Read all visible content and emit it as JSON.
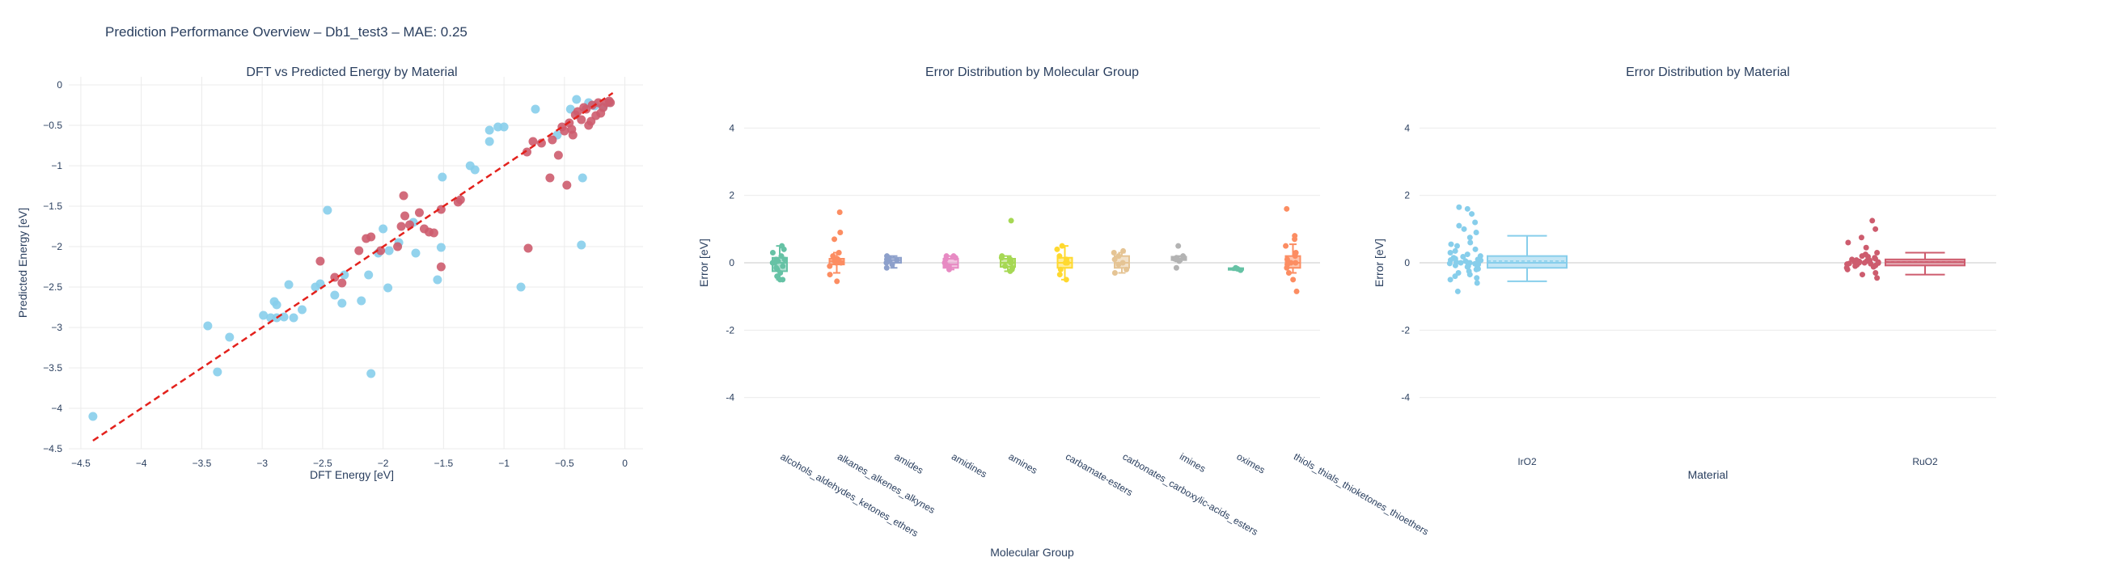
{
  "figure": {
    "title": "Prediction Performance Overview – Db1_test3 – MAE: 0.25"
  },
  "colors": {
    "IrO2": "#87CEEB",
    "RuO2": "#CD5C6E",
    "parity_line": "#E3211C",
    "grid": "#EBEBEB",
    "text": "#2a3f5f"
  },
  "chart_data": [
    {
      "type": "scatter",
      "title": "DFT vs Predicted Energy by Material",
      "xlabel": "DFT Energy [eV]",
      "ylabel": "Predicted Energy [eV]",
      "xlim": [
        -4.6,
        0.15
      ],
      "ylim": [
        -4.5,
        0.1
      ],
      "xticks": [
        -4.5,
        -4,
        -3.5,
        -3,
        -2.5,
        -2,
        -1.5,
        -1,
        -0.5,
        0
      ],
      "xtick_labels": [
        "−4.5",
        "−4",
        "−3.5",
        "−3",
        "−2.5",
        "−2",
        "−1.5",
        "−1",
        "−0.5",
        "0"
      ],
      "yticks": [
        0,
        -0.5,
        -1,
        -1.5,
        -2,
        -2.5,
        -3,
        -3.5,
        -4,
        -4.5
      ],
      "ytick_labels": [
        "0",
        "−0.5",
        "−1",
        "−1.5",
        "−2",
        "−2.5",
        "−3",
        "−3.5",
        "−4",
        "−4.5"
      ],
      "grid": true,
      "parity_line": {
        "x": [
          -4.4,
          -0.1
        ],
        "y": [
          -4.4,
          -0.1
        ]
      },
      "series": [
        {
          "color_key": "IrO2",
          "points": [
            [
              -4.4,
              -4.1
            ],
            [
              -3.45,
              -2.98
            ],
            [
              -3.37,
              -3.55
            ],
            [
              -3.27,
              -3.12
            ],
            [
              -2.99,
              -2.85
            ],
            [
              -2.93,
              -2.88
            ],
            [
              -2.9,
              -2.68
            ],
            [
              -2.88,
              -2.72
            ],
            [
              -2.88,
              -2.88
            ],
            [
              -2.82,
              -2.87
            ],
            [
              -2.78,
              -2.47
            ],
            [
              -2.74,
              -2.88
            ],
            [
              -2.67,
              -2.78
            ],
            [
              -2.56,
              -2.5
            ],
            [
              -2.52,
              -2.46
            ],
            [
              -2.46,
              -1.55
            ],
            [
              -2.4,
              -2.6
            ],
            [
              -2.34,
              -2.7
            ],
            [
              -2.32,
              -2.35
            ],
            [
              -2.18,
              -2.67
            ],
            [
              -2.12,
              -2.35
            ],
            [
              -2.1,
              -3.57
            ],
            [
              -2.04,
              -2.08
            ],
            [
              -2.0,
              -1.78
            ],
            [
              -1.96,
              -2.51
            ],
            [
              -1.95,
              -2.05
            ],
            [
              -1.87,
              -1.95
            ],
            [
              -1.75,
              -1.7
            ],
            [
              -1.73,
              -2.08
            ],
            [
              -1.55,
              -2.41
            ],
            [
              -1.52,
              -2.01
            ],
            [
              -1.51,
              -1.14
            ],
            [
              -1.28,
              -1.0
            ],
            [
              -1.24,
              -1.05
            ],
            [
              -1.12,
              -0.56
            ],
            [
              -1.12,
              -0.7
            ],
            [
              -1.05,
              -0.52
            ],
            [
              -1.0,
              -0.52
            ],
            [
              -0.86,
              -2.5
            ],
            [
              -0.74,
              -0.3
            ],
            [
              -0.56,
              -0.62
            ],
            [
              -0.45,
              -0.3
            ],
            [
              -0.4,
              -0.18
            ],
            [
              -0.36,
              -1.98
            ],
            [
              -0.35,
              -1.15
            ],
            [
              -0.3,
              -0.22
            ],
            [
              -0.25,
              -0.26
            ],
            [
              -0.18,
              -0.27
            ],
            [
              -0.13,
              -0.22
            ]
          ]
        },
        {
          "color_key": "RuO2",
          "points": [
            [
              -2.52,
              -2.18
            ],
            [
              -2.4,
              -2.38
            ],
            [
              -2.34,
              -2.45
            ],
            [
              -2.2,
              -2.05
            ],
            [
              -2.14,
              -1.9
            ],
            [
              -2.1,
              -1.88
            ],
            [
              -2.02,
              -2.05
            ],
            [
              -1.88,
              -2.0
            ],
            [
              -1.85,
              -1.75
            ],
            [
              -1.82,
              -1.62
            ],
            [
              -1.83,
              -1.37
            ],
            [
              -1.78,
              -1.73
            ],
            [
              -1.7,
              -1.58
            ],
            [
              -1.66,
              -1.78
            ],
            [
              -1.62,
              -1.82
            ],
            [
              -1.58,
              -1.83
            ],
            [
              -1.52,
              -2.25
            ],
            [
              -1.52,
              -1.54
            ],
            [
              -1.38,
              -1.45
            ],
            [
              -1.36,
              -1.42
            ],
            [
              -0.81,
              -0.83
            ],
            [
              -0.8,
              -2.02
            ],
            [
              -0.76,
              -0.7
            ],
            [
              -0.69,
              -0.72
            ],
            [
              -0.62,
              -1.15
            ],
            [
              -0.6,
              -0.68
            ],
            [
              -0.55,
              -0.87
            ],
            [
              -0.52,
              -0.52
            ],
            [
              -0.5,
              -0.57
            ],
            [
              -0.48,
              -1.24
            ],
            [
              -0.46,
              -0.47
            ],
            [
              -0.44,
              -0.55
            ],
            [
              -0.43,
              -0.62
            ],
            [
              -0.41,
              -0.37
            ],
            [
              -0.39,
              -0.33
            ],
            [
              -0.36,
              -0.43
            ],
            [
              -0.34,
              -0.28
            ],
            [
              -0.32,
              -0.3
            ],
            [
              -0.3,
              -0.5
            ],
            [
              -0.28,
              -0.45
            ],
            [
              -0.27,
              -0.25
            ],
            [
              -0.24,
              -0.38
            ],
            [
              -0.22,
              -0.22
            ],
            [
              -0.2,
              -0.35
            ],
            [
              -0.18,
              -0.28
            ],
            [
              -0.15,
              -0.22
            ],
            [
              -0.13,
              -0.2
            ],
            [
              -0.12,
              -0.22
            ]
          ]
        }
      ]
    },
    {
      "type": "box",
      "title": "Error Distribution by Molecular Group",
      "xlabel": "Molecular Group",
      "ylabel": "Error [eV]",
      "ylim": [
        -4.8,
        4.8
      ],
      "yticks": [
        4,
        2,
        0,
        -2,
        -4
      ],
      "grid": true,
      "categories": [
        "alcohols_aldehydes_ketones_ethers",
        "alkanes_alkenes_alkynes",
        "amides",
        "amidines",
        "amines",
        "carbamate-esters",
        "carbonates_carboxylic-acids_esters",
        "imines",
        "oximes",
        "thiols_thials_thioketones_thioethers"
      ],
      "colors": [
        "#66C2A5",
        "#FC8D62",
        "#8DA0CB",
        "#E78AC3",
        "#A6D854",
        "#FFD92F",
        "#E5C494",
        "#B3B3B3",
        "#66C2A5",
        "#FC8D62"
      ],
      "boxes": [
        {
          "q1": -0.25,
          "median": 0.0,
          "q3": 0.15,
          "lower": -0.5,
          "upper": 0.5
        },
        {
          "q1": -0.05,
          "median": 0.05,
          "q3": 0.12,
          "lower": -0.3,
          "upper": 0.3
        },
        {
          "q1": 0.0,
          "median": 0.08,
          "q3": 0.15,
          "lower": -0.15,
          "upper": 0.2
        },
        {
          "q1": -0.15,
          "median": -0.05,
          "q3": 0.12,
          "lower": -0.2,
          "upper": 0.2
        },
        {
          "q1": -0.12,
          "median": 0.0,
          "q3": 0.12,
          "lower": -0.25,
          "upper": 0.2
        },
        {
          "q1": -0.15,
          "median": 0.0,
          "q3": 0.15,
          "lower": -0.5,
          "upper": 0.5
        },
        {
          "q1": -0.15,
          "median": 0.0,
          "q3": 0.2,
          "lower": -0.3,
          "upper": 0.3
        },
        {
          "q1": 0.08,
          "median": 0.12,
          "q3": 0.18,
          "lower": 0.05,
          "upper": 0.2
        },
        {
          "q1": -0.2,
          "median": -0.18,
          "q3": -0.16,
          "lower": -0.22,
          "upper": -0.15
        },
        {
          "q1": -0.15,
          "median": 0.0,
          "q3": 0.2,
          "lower": -0.3,
          "upper": 0.55
        }
      ],
      "points": [
        [
          -0.5,
          -0.4,
          -0.3,
          -0.2,
          -0.1,
          0.0,
          0.05,
          0.1,
          0.2,
          0.3,
          0.4,
          0.5,
          -0.5,
          0.0,
          0.1,
          -0.15
        ],
        [
          -0.55,
          -0.35,
          -0.1,
          0.0,
          0.05,
          0.08,
          0.12,
          0.2,
          0.3,
          0.7,
          0.9,
          1.5,
          0.0,
          0.05
        ],
        [
          -0.15,
          -0.05,
          0.0,
          0.05,
          0.1,
          0.15,
          0.2,
          0.08
        ],
        [
          -0.2,
          -0.1,
          -0.05,
          0.0,
          0.1,
          0.15,
          0.2,
          0.2
        ],
        [
          -0.25,
          -0.2,
          -0.1,
          0.0,
          0.05,
          0.1,
          0.15,
          0.2,
          1.25,
          -0.15,
          0.05
        ],
        [
          -0.5,
          -0.35,
          -0.2,
          0.0,
          0.1,
          0.2,
          0.4,
          0.5,
          0.0
        ],
        [
          -0.3,
          -0.2,
          -0.05,
          0.0,
          0.1,
          0.2,
          0.3,
          0.35
        ],
        [
          -0.15,
          0.05,
          0.1,
          0.12,
          0.15,
          0.2,
          0.5
        ],
        [
          -0.22,
          -0.18,
          -0.15
        ],
        [
          -0.85,
          -0.5,
          -0.3,
          -0.15,
          0.0,
          0.1,
          0.2,
          0.3,
          0.5,
          0.7,
          0.8,
          1.6,
          0.0,
          -0.05
        ]
      ]
    },
    {
      "type": "box",
      "title": "Error Distribution by Material",
      "xlabel": "Material",
      "ylabel": "Error [eV]",
      "ylim": [
        -4.8,
        4.8
      ],
      "yticks": [
        4,
        2,
        0,
        -2,
        -4
      ],
      "grid": true,
      "categories": [
        "IrO2",
        "RuO2"
      ],
      "color_keys": [
        "IrO2",
        "RuO2"
      ],
      "boxes": [
        {
          "q1": -0.15,
          "median": 0.0,
          "mean": 0.05,
          "q3": 0.2,
          "lower": -0.55,
          "upper": 0.8
        },
        {
          "q1": -0.08,
          "median": 0.02,
          "mean": 0.03,
          "q3": 0.1,
          "lower": -0.35,
          "upper": 0.3
        }
      ],
      "points": [
        [
          -0.85,
          -0.6,
          -0.5,
          -0.45,
          -0.4,
          -0.35,
          -0.3,
          -0.25,
          -0.2,
          -0.15,
          -0.12,
          -0.1,
          -0.08,
          -0.05,
          -0.03,
          0.0,
          0.0,
          0.02,
          0.05,
          0.07,
          0.1,
          0.12,
          0.15,
          0.18,
          0.2,
          0.25,
          0.3,
          0.35,
          0.4,
          0.5,
          0.55,
          0.6,
          0.75,
          0.9,
          1.0,
          1.1,
          1.2,
          1.45,
          1.6,
          1.65,
          -0.02,
          0.08,
          0.0,
          -0.18
        ],
        [
          -0.45,
          -0.35,
          -0.3,
          -0.2,
          -0.15,
          -0.12,
          -0.1,
          -0.08,
          -0.06,
          -0.05,
          -0.03,
          -0.02,
          0.0,
          0.0,
          0.01,
          0.02,
          0.03,
          0.04,
          0.05,
          0.06,
          0.08,
          0.1,
          0.12,
          0.15,
          0.18,
          0.2,
          0.25,
          0.3,
          0.45,
          0.6,
          0.75,
          1.0,
          1.25,
          -0.04,
          0.07,
          0.0,
          0.02,
          -0.01
        ]
      ]
    }
  ]
}
